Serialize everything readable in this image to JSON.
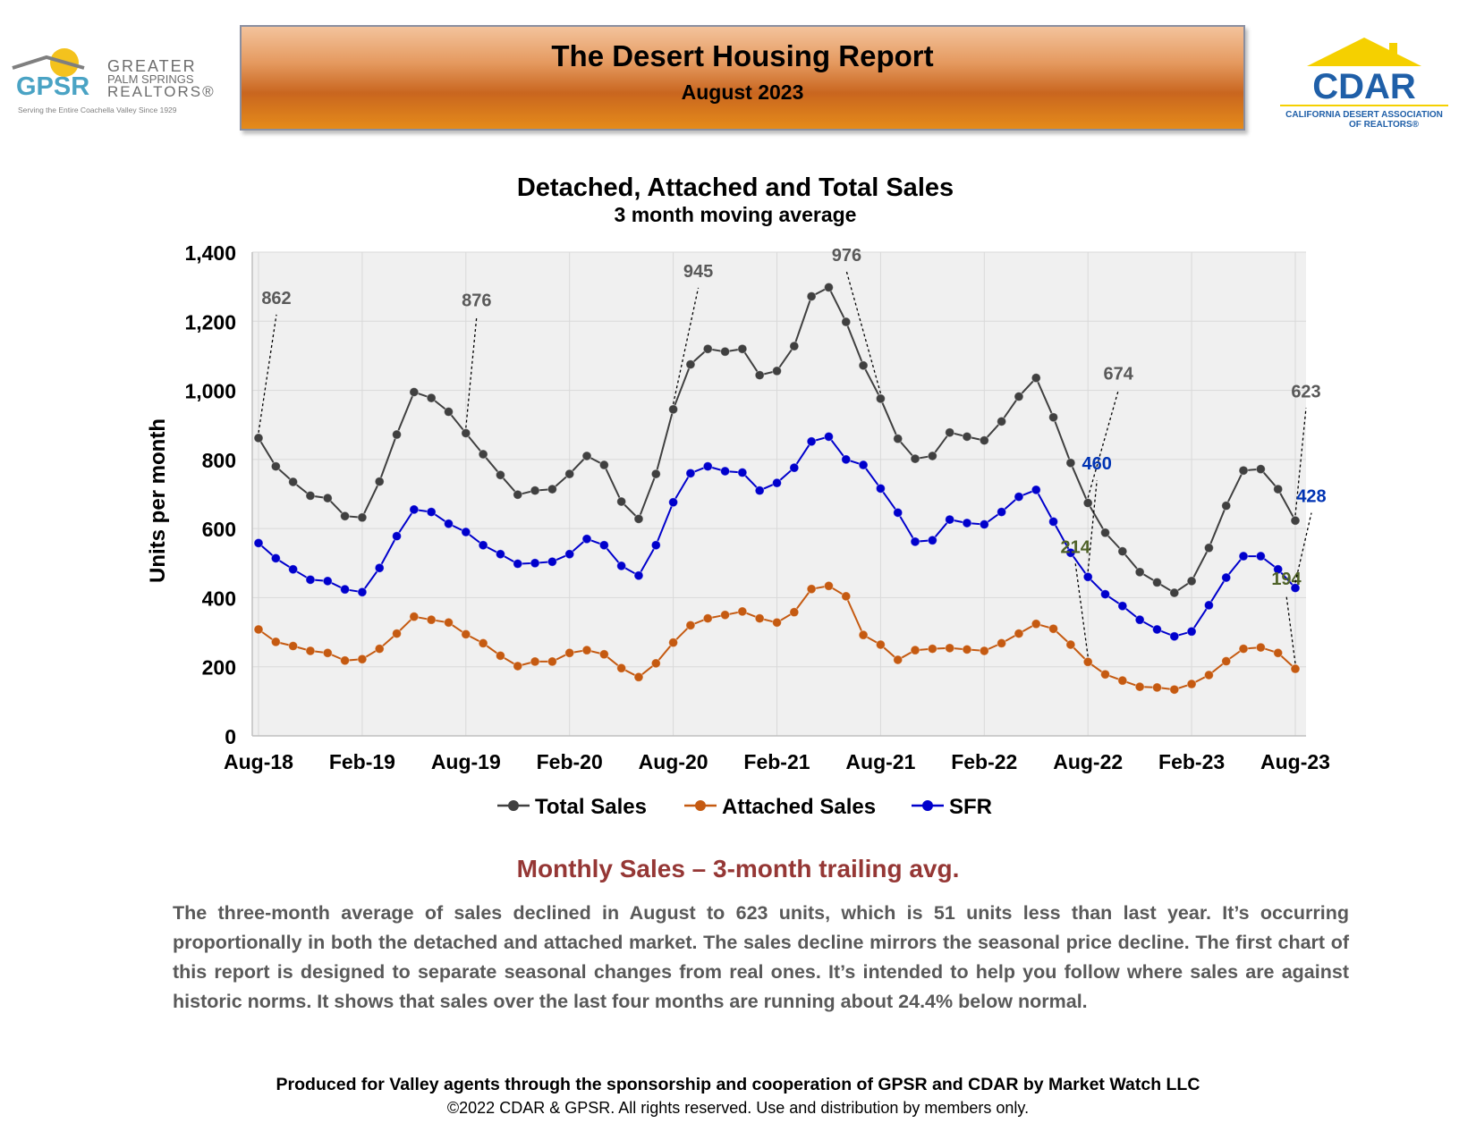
{
  "header": {
    "title": "The Desert Housing Report",
    "subtitle": "August 2023"
  },
  "logos": {
    "gpsr": {
      "abbr": "GPSR",
      "line1": "GREATER",
      "line2": "PALM SPRINGS",
      "line3": "REALTORS®",
      "tagline": "Serving the Entire Coachella Valley Since 1929"
    },
    "cdar": {
      "abbr": "CDAR",
      "line1": "CALIFORNIA DESERT ASSOCIATION",
      "line2": "OF REALTORS®"
    }
  },
  "chart_data": {
    "type": "line",
    "title": "Detached, Attached and Total Sales",
    "subtitle": "3 month moving average",
    "ylabel": "Units per month",
    "xlabel": "",
    "ylim": [
      0,
      1400
    ],
    "yticks": [
      0,
      200,
      400,
      600,
      800,
      1000,
      1200,
      1400
    ],
    "ytick_labels": [
      "0",
      "200",
      "400",
      "600",
      "800",
      "1,000",
      "1,200",
      "1,400"
    ],
    "xtick_labels": [
      "Aug-18",
      "Feb-19",
      "Aug-19",
      "Feb-20",
      "Aug-20",
      "Feb-21",
      "Aug-21",
      "Feb-22",
      "Aug-22",
      "Feb-23",
      "Aug-23"
    ],
    "grid": true,
    "legend_position": "bottom",
    "background": "#f0f0f0",
    "series": [
      {
        "name": "Total Sales",
        "color": "#404040",
        "label_color": "#595959",
        "values": [
          862,
          780,
          735,
          695,
          688,
          636,
          632,
          736,
          872,
          995,
          978,
          938,
          876,
          815,
          755,
          698,
          710,
          714,
          758,
          810,
          784,
          678,
          628,
          758,
          945,
          1075,
          1120,
          1112,
          1120,
          1044,
          1056,
          1128,
          1272,
          1298,
          1198,
          1072,
          976,
          860,
          802,
          810,
          878,
          866,
          855,
          910,
          982,
          1036,
          922,
          790,
          674,
          588,
          534,
          474,
          444,
          414,
          448,
          544,
          666,
          768,
          772,
          714,
          623
        ],
        "labels": [
          {
            "index": 0,
            "text": "862",
            "dx": 20,
            "dy": -150
          },
          {
            "index": 12,
            "text": "876",
            "dx": 12,
            "dy": -142
          },
          {
            "index": 24,
            "text": "945",
            "dx": 28,
            "dy": -148
          },
          {
            "index": 36,
            "text": "976",
            "dx": -38,
            "dy": -154
          },
          {
            "index": 48,
            "text": "674",
            "dx": 34,
            "dy": -138
          },
          {
            "index": 60,
            "text": "623",
            "dx": 12,
            "dy": -138
          }
        ]
      },
      {
        "name": "Attached Sales",
        "color": "#c55a11",
        "label_color": "#4f6228",
        "values": [
          308,
          272,
          260,
          246,
          240,
          218,
          222,
          252,
          296,
          345,
          336,
          328,
          294,
          268,
          232,
          202,
          215,
          215,
          240,
          248,
          236,
          196,
          170,
          210,
          270,
          320,
          340,
          350,
          360,
          340,
          328,
          358,
          425,
          434,
          404,
          292,
          264,
          220,
          248,
          252,
          254,
          250,
          246,
          268,
          296,
          324,
          310,
          264,
          214,
          178,
          160,
          142,
          140,
          134,
          150,
          176,
          216,
          252,
          256,
          240,
          194
        ],
        "labels": [
          {
            "index": 48,
            "text": "214",
            "dx": -14,
            "dy": -122
          },
          {
            "index": 60,
            "text": "194",
            "dx": -10,
            "dy": -94
          }
        ]
      },
      {
        "name": "SFR",
        "color": "#0000cc",
        "label_color": "#0033b3",
        "values": [
          558,
          514,
          482,
          452,
          448,
          424,
          416,
          486,
          578,
          655,
          648,
          614,
          590,
          552,
          526,
          498,
          500,
          504,
          526,
          570,
          552,
          492,
          464,
          552,
          676,
          760,
          780,
          766,
          762,
          710,
          732,
          776,
          852,
          866,
          800,
          784,
          716,
          646,
          562,
          566,
          626,
          616,
          612,
          648,
          692,
          712,
          620,
          530,
          460,
          410,
          376,
          336,
          308,
          288,
          302,
          378,
          458,
          520,
          520,
          482,
          428
        ],
        "labels": [
          {
            "index": 48,
            "text": "460",
            "dx": 10,
            "dy": -120
          },
          {
            "index": 60,
            "text": "428",
            "dx": 18,
            "dy": -96
          }
        ]
      }
    ]
  },
  "summary": {
    "heading": "Monthly Sales – 3-month trailing avg.",
    "body": "The three-month average of sales declined in August to 623 units, which is 51 units less than last year. It’s occurring proportionally in both the detached and attached market. The sales decline mirrors the seasonal price decline. The first chart of this report is designed to separate seasonal changes from real ones. It’s intended to help you follow where sales are against historic norms. It shows that sales over the last four months are running about 24.4% below normal."
  },
  "footer": {
    "line1": "Produced for Valley agents through the sponsorship and cooperation of GPSR and CDAR by Market Watch LLC",
    "line2": "©2022 CDAR & GPSR.  All rights reserved.  Use and distribution by members only."
  }
}
